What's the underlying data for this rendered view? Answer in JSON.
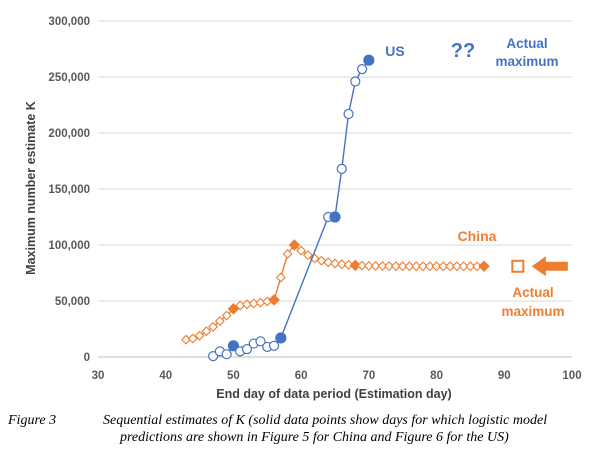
{
  "chart_data": {
    "type": "scatter",
    "xlabel": "End day of data period (Estimation day)",
    "ylabel": "Maximum number estimate K",
    "xlim": [
      30,
      100
    ],
    "ylim": [
      0,
      300000
    ],
    "x_ticks": [
      "30",
      "40",
      "50",
      "60",
      "70",
      "80",
      "90",
      "100"
    ],
    "y_ticks": [
      "0",
      "50,000",
      "100,000",
      "150,000",
      "200,000",
      "250,000",
      "300,000"
    ],
    "grid": "horizontal",
    "series": [
      {
        "name": "China",
        "color": "#ed7d31",
        "marker": "diamond",
        "points": [
          [
            43,
            15500
          ],
          [
            44,
            16500
          ],
          [
            45,
            19000
          ],
          [
            46,
            23000
          ],
          [
            47,
            27000
          ],
          [
            48,
            32000
          ],
          [
            49,
            37000
          ],
          [
            50,
            43000
          ],
          [
            51,
            46000
          ],
          [
            52,
            47000
          ],
          [
            53,
            47800
          ],
          [
            54,
            48500
          ],
          [
            55,
            49500
          ],
          [
            56,
            51000
          ],
          [
            57,
            71000
          ],
          [
            58,
            92000
          ],
          [
            59,
            100000
          ],
          [
            60,
            95000
          ],
          [
            61,
            91000
          ],
          [
            62,
            88000
          ],
          [
            63,
            86000
          ],
          [
            64,
            84500
          ],
          [
            65,
            83500
          ],
          [
            66,
            82800
          ],
          [
            67,
            82300
          ],
          [
            68,
            81800
          ],
          [
            69,
            81600
          ],
          [
            70,
            81400
          ],
          [
            71,
            81300
          ],
          [
            72,
            81200
          ],
          [
            73,
            81100
          ],
          [
            74,
            81100
          ],
          [
            75,
            81000
          ],
          [
            76,
            81000
          ],
          [
            77,
            81000
          ],
          [
            78,
            81000
          ],
          [
            79,
            81000
          ],
          [
            80,
            81000
          ],
          [
            81,
            81000
          ],
          [
            82,
            81000
          ],
          [
            83,
            81000
          ],
          [
            84,
            81000
          ],
          [
            85,
            81000
          ],
          [
            86,
            81000
          ],
          [
            87,
            81000
          ]
        ],
        "solid_x": [
          50,
          56,
          59,
          68,
          87
        ],
        "actual_maximum": {
          "x": 92,
          "y": 81000
        }
      },
      {
        "name": "US",
        "color": "#4472c4",
        "marker": "circle",
        "points": [
          [
            47,
            800
          ],
          [
            48,
            5000
          ],
          [
            49,
            2500
          ],
          [
            50,
            10000
          ],
          [
            51,
            5000
          ],
          [
            52,
            7000
          ],
          [
            53,
            12000
          ],
          [
            54,
            14000
          ],
          [
            55,
            9000
          ],
          [
            56,
            10000
          ],
          [
            57,
            17000
          ],
          [
            64,
            125000
          ],
          [
            65,
            125000
          ],
          [
            66,
            168000
          ],
          [
            67,
            217000
          ],
          [
            68,
            246000
          ],
          [
            69,
            257000
          ],
          [
            70,
            265000
          ]
        ],
        "solid_x": [
          50,
          57,
          65,
          70
        ]
      }
    ],
    "annotations": {
      "us_label": "US",
      "us_unknown": "??",
      "us_actual_line1": "Actual",
      "us_actual_line2": "maximum",
      "china_label": "China",
      "china_actual_line1": "Actual",
      "china_actual_line2": "maximum"
    }
  },
  "caption": {
    "label": "Figure 3",
    "line1": "Sequential estimates of K (solid data points show days for which logistic model",
    "line2": "predictions are shown in Figure 5 for China and Figure 6 for the US)"
  }
}
